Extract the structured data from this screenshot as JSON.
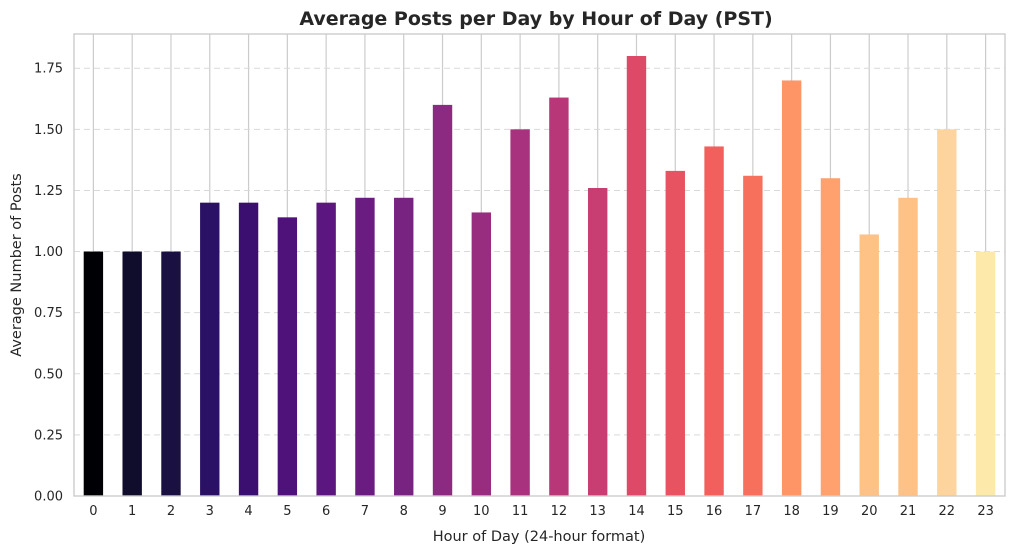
{
  "chart_data": {
    "type": "bar",
    "title": "Average Posts per Day by Hour of Day (PST)",
    "xlabel": "Hour of Day (24-hour format)",
    "ylabel": "Average Number of Posts",
    "categories": [
      "0",
      "1",
      "2",
      "3",
      "4",
      "5",
      "6",
      "7",
      "8",
      "9",
      "10",
      "11",
      "12",
      "13",
      "14",
      "15",
      "16",
      "17",
      "18",
      "19",
      "20",
      "21",
      "22",
      "23"
    ],
    "values": [
      1.0,
      1.0,
      1.0,
      1.2,
      1.2,
      1.14,
      1.2,
      1.22,
      1.22,
      1.6,
      1.16,
      1.5,
      1.63,
      1.26,
      1.8,
      1.33,
      1.43,
      1.31,
      1.7,
      1.3,
      1.07,
      1.22,
      1.5,
      1.0
    ],
    "colors": [
      "#000004",
      "#0f0c2c",
      "#1a1042",
      "#2a1165",
      "#3b0f70",
      "#4f127b",
      "#5c167f",
      "#6a1c81",
      "#782281",
      "#8c2981",
      "#982d80",
      "#a8327d",
      "#b73779",
      "#c83e73",
      "#de4968",
      "#e85362",
      "#f1605d",
      "#f7705c",
      "#fd9567",
      "#fea16e",
      "#fec287",
      "#fec287",
      "#fdd49e",
      "#fde9a9"
    ],
    "yticks": [
      0.0,
      0.25,
      0.5,
      0.75,
      1.0,
      1.25,
      1.5,
      1.75
    ],
    "ytick_labels": [
      "0.00",
      "0.25",
      "0.50",
      "0.75",
      "1.00",
      "1.25",
      "1.50",
      "1.75"
    ],
    "ylim": [
      0,
      1.89
    ],
    "grid": true,
    "legend": "none"
  }
}
